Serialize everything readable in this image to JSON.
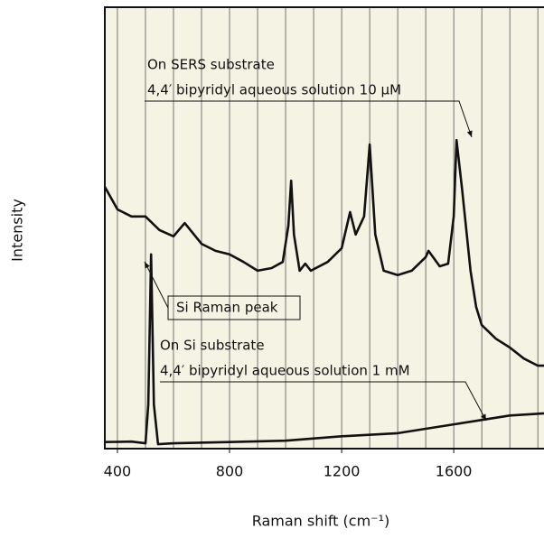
{
  "chart_data": {
    "type": "line",
    "xlabel": "Raman shift (cm⁻¹)",
    "ylabel": "Intensity",
    "xlim": [
      355,
      1922
    ],
    "ylim": [
      0,
      100
    ],
    "xticks": [
      400,
      800,
      1200,
      1600
    ],
    "xgrid": [
      400,
      500,
      600,
      700,
      800,
      900,
      1000,
      1100,
      1200,
      1300,
      1400,
      1500,
      1600,
      1700,
      1800,
      1900
    ],
    "grid": true,
    "background": "#f5f3e4",
    "series": [
      {
        "color": "#111111",
        "x": [
          355,
          400,
          450,
          500,
          550,
          600,
          640,
          700,
          750,
          800,
          850,
          900,
          950,
          990,
          1010,
          1020,
          1030,
          1050,
          1070,
          1090,
          1150,
          1200,
          1230,
          1250,
          1280,
          1300,
          1320,
          1350,
          1400,
          1450,
          1500,
          1510,
          1550,
          1580,
          1600,
          1610,
          1630,
          1660,
          1680,
          1700,
          1750,
          1800,
          1850,
          1900,
          1922
        ],
        "values": [
          59.3,
          54.2,
          52.6,
          52.6,
          49.5,
          48.1,
          51.1,
          46.4,
          44.8,
          44.0,
          42.3,
          40.3,
          40.9,
          42.3,
          50.5,
          60.7,
          48.5,
          40.3,
          41.9,
          40.3,
          42.3,
          45.4,
          53.6,
          48.5,
          52.6,
          68.9,
          48.5,
          40.3,
          39.3,
          40.3,
          43.4,
          44.8,
          41.3,
          41.9,
          52.6,
          69.9,
          58.7,
          40.3,
          32.1,
          28.0,
          24.9,
          22.9,
          20.4,
          18.8,
          18.8
        ]
      },
      {
        "color": "#111111",
        "x": [
          355,
          450,
          500,
          510,
          520,
          530,
          545,
          600,
          800,
          1000,
          1200,
          1400,
          1600,
          1800,
          1922
        ],
        "values": [
          1.5,
          1.6,
          1.2,
          10,
          44,
          10,
          1.0,
          1.2,
          1.5,
          1.8,
          2.8,
          3.5,
          5.5,
          7.5,
          8.0
        ]
      }
    ],
    "annotations": [
      "On SERS substrate",
      "4,4′ bipyridyl aqueous solution 10 μM",
      "Si Raman peak",
      "On Si substrate",
      "4,4′ bipyridyl aqueous solution 1 mM"
    ]
  }
}
